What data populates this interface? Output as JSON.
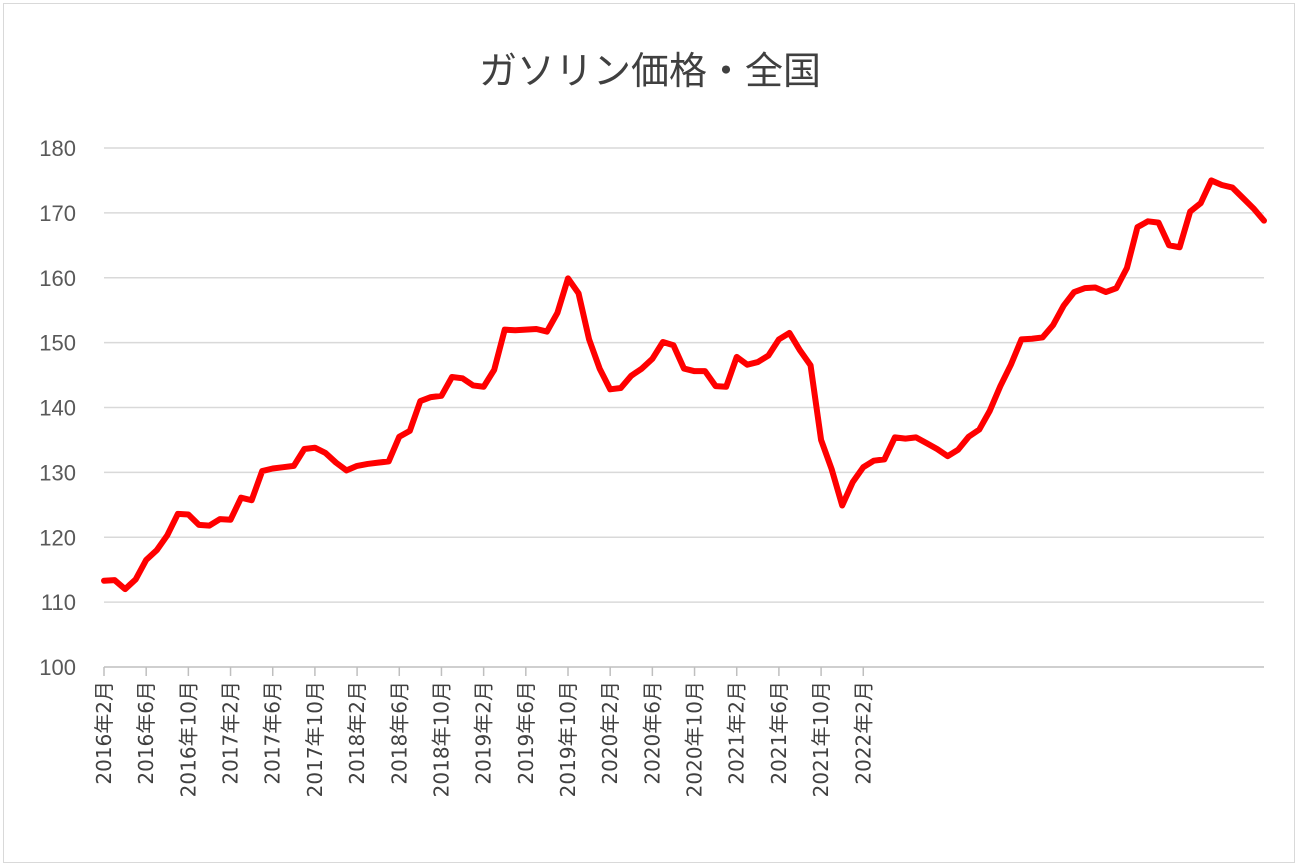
{
  "chart_data": {
    "type": "line",
    "title": "ガソリン価格・全国",
    "xlabel": "",
    "ylabel": "",
    "ylim": [
      100,
      180
    ],
    "yticks": [
      100,
      110,
      120,
      130,
      140,
      150,
      160,
      170,
      180
    ],
    "grid": true,
    "legend": "none",
    "x_start": "2016年2月",
    "x_tick_labels": [
      "2016年2月",
      "2016年6月",
      "2016年10月",
      "2017年2月",
      "2017年6月",
      "2017年10月",
      "2018年2月",
      "2018年6月",
      "2018年10月",
      "2019年2月",
      "2019年6月",
      "2019年10月",
      "2020年2月",
      "2020年6月",
      "2020年10月",
      "2021年2月",
      "2021年6月",
      "2021年10月",
      "2022年2月"
    ],
    "series": [
      {
        "name": "",
        "color": "#ff0000",
        "values": [
          113.3,
          113.4,
          112.0,
          113.5,
          116.5,
          118.0,
          120.3,
          123.6,
          123.5,
          121.9,
          121.8,
          122.8,
          122.7,
          126.1,
          125.7,
          130.2,
          130.6,
          130.8,
          131.0,
          133.6,
          133.8,
          133.0,
          131.5,
          130.3,
          131.0,
          131.3,
          131.5,
          131.7,
          135.5,
          136.4,
          141.0,
          141.6,
          141.8,
          144.7,
          144.5,
          143.4,
          143.2,
          145.8,
          152.0,
          151.9,
          152.0,
          152.1,
          151.7,
          154.6,
          159.9,
          157.6,
          150.5,
          146.0,
          142.8,
          143.0,
          144.9,
          146.0,
          147.5,
          150.1,
          149.6,
          146.0,
          145.6,
          145.6,
          143.3,
          143.2,
          147.8,
          146.6,
          147.0,
          148.0,
          150.5,
          151.5,
          148.8,
          146.5,
          135.0,
          130.5,
          124.9,
          128.5,
          130.8,
          131.8,
          132.0,
          135.4,
          135.2,
          135.4,
          134.5,
          133.6,
          132.5,
          133.5,
          135.5,
          136.6,
          139.5,
          143.3,
          146.6,
          150.5,
          150.6,
          150.8,
          152.7,
          155.7,
          157.8,
          158.4,
          158.5,
          157.8,
          158.4,
          161.5,
          167.8,
          168.7,
          168.5,
          165.0,
          164.7,
          170.2,
          171.5,
          175.0,
          174.3,
          173.9,
          172.3,
          170.7,
          168.8
        ]
      }
    ]
  }
}
